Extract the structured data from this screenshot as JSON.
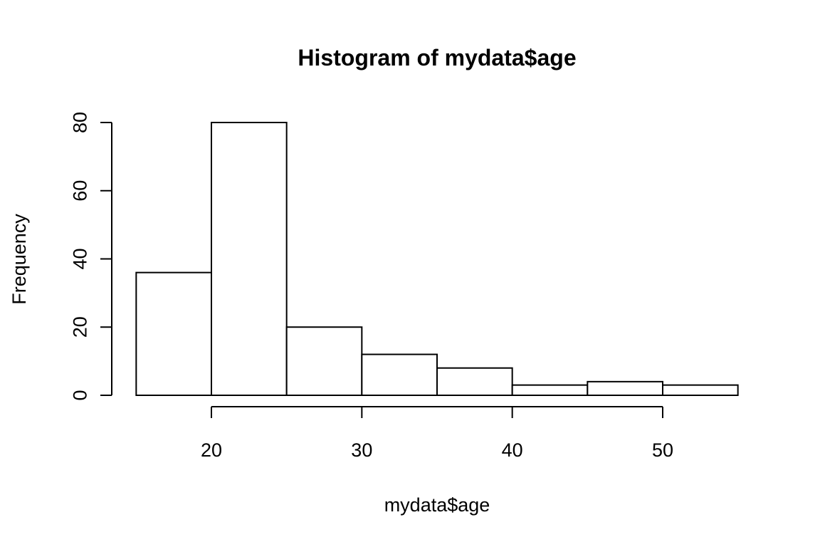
{
  "chart_data": {
    "type": "bar",
    "subtype": "histogram",
    "title": "Histogram of mydata$age",
    "xlabel": "mydata$age",
    "ylabel": "Frequency",
    "bins": [
      {
        "start": 15,
        "end": 20,
        "count": 36
      },
      {
        "start": 20,
        "end": 25,
        "count": 80
      },
      {
        "start": 25,
        "end": 30,
        "count": 20
      },
      {
        "start": 30,
        "end": 35,
        "count": 12
      },
      {
        "start": 35,
        "end": 40,
        "count": 8
      },
      {
        "start": 40,
        "end": 45,
        "count": 3
      },
      {
        "start": 45,
        "end": 50,
        "count": 4
      },
      {
        "start": 50,
        "end": 55,
        "count": 3
      }
    ],
    "x_ticks": [
      20,
      30,
      40,
      50
    ],
    "y_ticks": [
      0,
      20,
      40,
      60,
      80
    ],
    "xlim": [
      15,
      55
    ],
    "ylim": [
      0,
      80
    ],
    "grid": false,
    "bar_fill": "#ffffff",
    "bar_stroke": "#000000"
  }
}
